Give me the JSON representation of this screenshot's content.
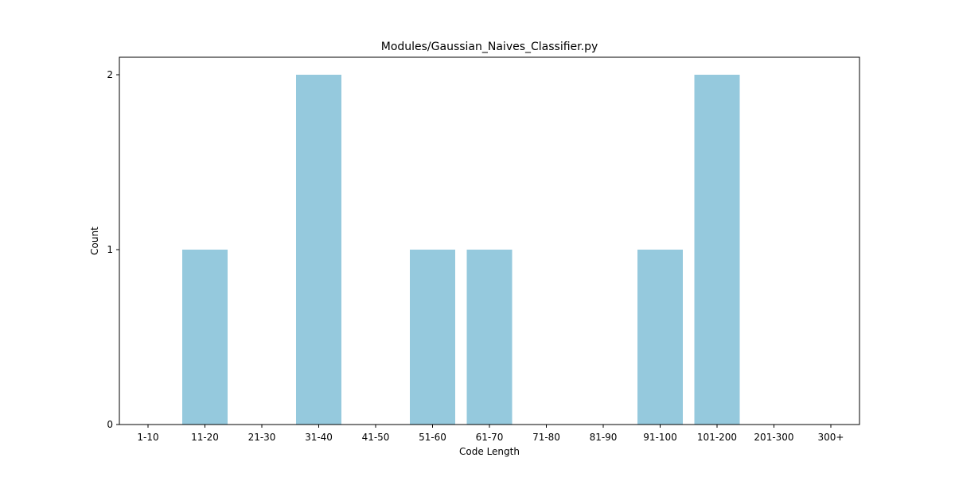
{
  "chart_data": {
    "type": "bar",
    "title": "Modules/Gaussian_Naives_Classifier.py",
    "xlabel": "Code Length",
    "ylabel": "Count",
    "categories": [
      "1-10",
      "11-20",
      "21-30",
      "31-40",
      "41-50",
      "51-60",
      "61-70",
      "71-80",
      "81-90",
      "91-100",
      "101-200",
      "201-300",
      "300+"
    ],
    "values": [
      0,
      1,
      0,
      2,
      0,
      1,
      1,
      0,
      0,
      1,
      2,
      0,
      0
    ],
    "yticks": [
      "0",
      "1",
      "2"
    ],
    "ylim": [
      0,
      2.1
    ],
    "bar_color": "#95c9dd",
    "grid": false
  }
}
